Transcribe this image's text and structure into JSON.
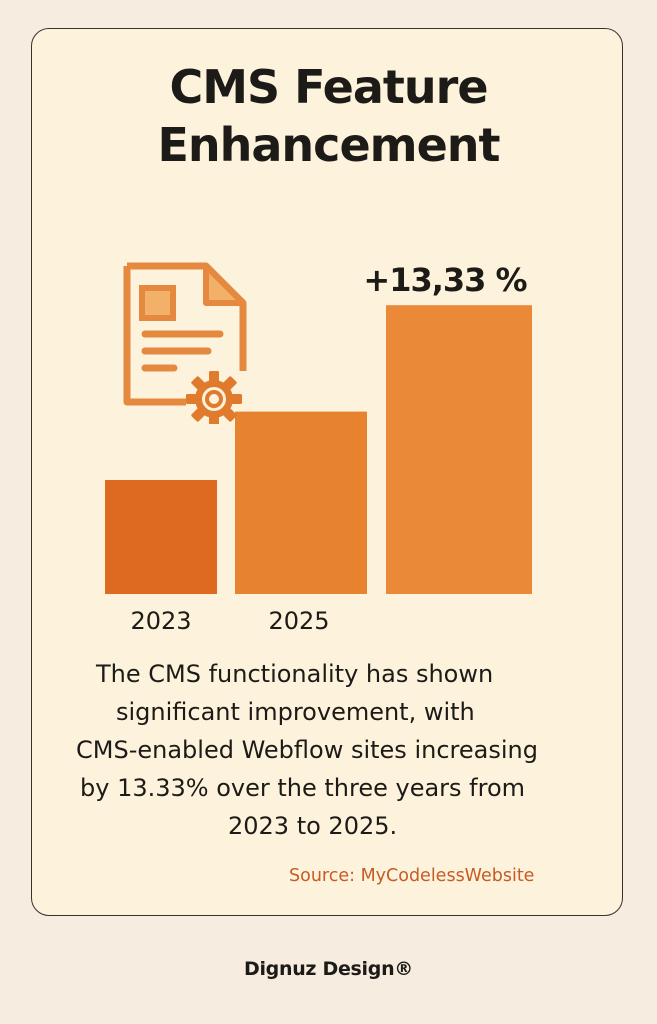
{
  "title_lines": [
    "CMS Feature",
    "Enhancement"
  ],
  "chart_data": {
    "type": "bar",
    "categories": [
      "2023",
      "2025",
      ""
    ],
    "values": [
      30,
      48,
      76
    ],
    "annotation": "+13,33 %",
    "bar_colors": [
      "#dd6a20",
      "#e7822f",
      "#ea8a38"
    ],
    "grid": false
  },
  "description_lines": [
    "The CMS functionality has shown",
    "significant improvement, with",
    "CMS-enabled Webflow sites increasing",
    "by 13.33% over the three years from",
    "2023 to 2025."
  ],
  "source": "Source: MyCodelessWebsite",
  "brand": "Dignuz Design®",
  "icon": "document-gear-icon",
  "colors": {
    "background": "#f6ecdf",
    "card": "#fdf3dc",
    "accent": "#e7822f",
    "text": "#1d1b18",
    "source": "#c65b24"
  }
}
